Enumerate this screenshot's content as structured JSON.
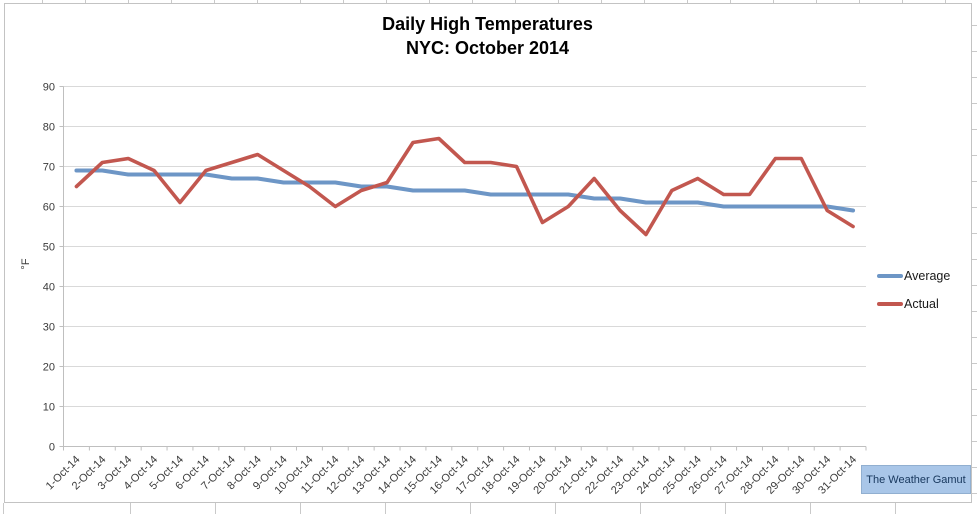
{
  "chart": {
    "title_line1": "Daily High Temperatures",
    "title_line2": "NYC: October 2014",
    "y_axis_title": "°F",
    "legend": [
      {
        "label": "Average",
        "color": "#6d96c6"
      },
      {
        "label": "Actual",
        "color": "#c2574f"
      }
    ]
  },
  "badge": {
    "label": "The Weather Gamut"
  },
  "chart_data": {
    "type": "line",
    "title": "Daily High Temperatures NYC: October 2014",
    "xlabel": "",
    "ylabel": "°F",
    "ylim": [
      0,
      90
    ],
    "yticks": [
      0,
      10,
      20,
      30,
      40,
      50,
      60,
      70,
      80,
      90
    ],
    "grid": true,
    "legend_position": "right",
    "categories": [
      "1-Oct-14",
      "2-Oct-14",
      "3-Oct-14",
      "4-Oct-14",
      "5-Oct-14",
      "6-Oct-14",
      "7-Oct-14",
      "8-Oct-14",
      "9-Oct-14",
      "10-Oct-14",
      "11-Oct-14",
      "12-Oct-14",
      "13-Oct-14",
      "14-Oct-14",
      "15-Oct-14",
      "16-Oct-14",
      "17-Oct-14",
      "18-Oct-14",
      "19-Oct-14",
      "20-Oct-14",
      "21-Oct-14",
      "22-Oct-14",
      "23-Oct-14",
      "24-Oct-14",
      "25-Oct-14",
      "26-Oct-14",
      "27-Oct-14",
      "28-Oct-14",
      "29-Oct-14",
      "30-Oct-14",
      "31-Oct-14"
    ],
    "series": [
      {
        "name": "Average",
        "color": "#6d96c6",
        "values": [
          69,
          69,
          68,
          68,
          68,
          68,
          67,
          67,
          66,
          66,
          66,
          65,
          65,
          64,
          64,
          64,
          63,
          63,
          63,
          63,
          62,
          62,
          61,
          61,
          61,
          60,
          60,
          60,
          60,
          60,
          59
        ]
      },
      {
        "name": "Actual",
        "color": "#c2574f",
        "values": [
          65,
          71,
          72,
          69,
          61,
          69,
          71,
          73,
          69,
          65,
          60,
          64,
          66,
          76,
          77,
          71,
          71,
          70,
          56,
          60,
          67,
          59,
          53,
          64,
          67,
          63,
          63,
          72,
          72,
          59,
          55
        ]
      }
    ]
  }
}
